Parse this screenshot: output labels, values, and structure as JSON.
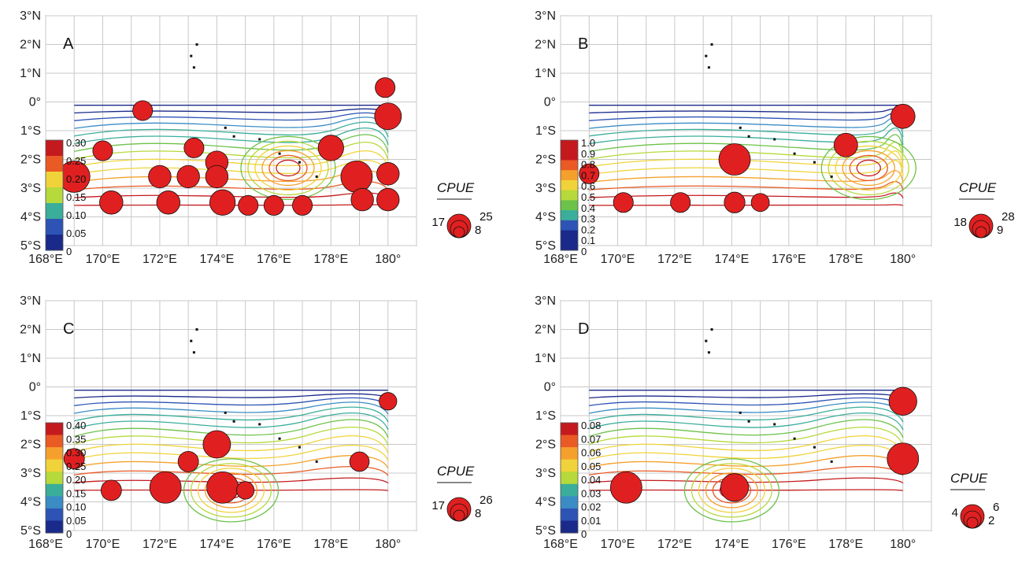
{
  "axes": {
    "lat_labels": [
      "3°N",
      "2°N",
      "1°N",
      "0°",
      "1°S",
      "2°S",
      "3°S",
      "4°S",
      "5°S"
    ],
    "lon_labels": [
      "168°E",
      "170°E",
      "172°E",
      "174°E",
      "176°E",
      "178°E",
      "180°"
    ],
    "lat_range": [
      -5,
      3
    ],
    "lon_range": [
      168,
      181
    ]
  },
  "colors": {
    "grid": "#c8c8c8",
    "circle": "#e02020",
    "land": "#111111",
    "colorbar": [
      "#ae0b1a",
      "#e63026",
      "#f57c2a",
      "#f3c437",
      "#c7df3a",
      "#75c442",
      "#33a896",
      "#3a7fc4",
      "#2b3d9f",
      "#1a1a80"
    ]
  },
  "chart_data": [
    {
      "type": "map",
      "panel": "A",
      "legend_title": "CPUE",
      "legend_values": [
        "17",
        "25",
        "8"
      ],
      "colorbar_ticks": [
        "0.30",
        "0.25",
        "0.20",
        "0.15",
        "0.10",
        "0.05",
        "0"
      ],
      "contour_center": [
        176.5,
        -2.3
      ],
      "points": [
        {
          "lon": 171.4,
          "lat": -0.3,
          "v": 8
        },
        {
          "lon": 169.0,
          "lat": -2.6,
          "v": 25
        },
        {
          "lon": 170.0,
          "lat": -1.7,
          "v": 8
        },
        {
          "lon": 172.0,
          "lat": -2.6,
          "v": 11
        },
        {
          "lon": 173.0,
          "lat": -2.6,
          "v": 11
        },
        {
          "lon": 173.2,
          "lat": -1.6,
          "v": 8
        },
        {
          "lon": 174.0,
          "lat": -2.1,
          "v": 11
        },
        {
          "lon": 174.0,
          "lat": -2.6,
          "v": 11
        },
        {
          "lon": 170.3,
          "lat": -3.5,
          "v": 12
        },
        {
          "lon": 172.3,
          "lat": -3.5,
          "v": 12
        },
        {
          "lon": 174.2,
          "lat": -3.5,
          "v": 15
        },
        {
          "lon": 175.1,
          "lat": -3.6,
          "v": 8
        },
        {
          "lon": 176.0,
          "lat": -3.6,
          "v": 8
        },
        {
          "lon": 177.0,
          "lat": -3.6,
          "v": 8
        },
        {
          "lon": 178.0,
          "lat": -1.6,
          "v": 15
        },
        {
          "lon": 178.9,
          "lat": -2.6,
          "v": 25
        },
        {
          "lon": 179.1,
          "lat": -3.4,
          "v": 11
        },
        {
          "lon": 180.0,
          "lat": -0.5,
          "v": 17
        },
        {
          "lon": 180.0,
          "lat": -2.5,
          "v": 11
        },
        {
          "lon": 180.0,
          "lat": -3.4,
          "v": 11
        },
        {
          "lon": 179.9,
          "lat": 0.5,
          "v": 8
        }
      ]
    },
    {
      "type": "map",
      "panel": "B",
      "legend_title": "CPUE",
      "legend_values": [
        "18",
        "28",
        "9"
      ],
      "colorbar_ticks": [
        "1.0",
        "0.9",
        "0.8",
        "0.7",
        "0.6",
        "0.5",
        "0.4",
        "0.3",
        "0.2",
        "0.1",
        "0"
      ],
      "contour_center": [
        178.8,
        -2.3
      ],
      "points": [
        {
          "lon": 169.0,
          "lat": -2.5,
          "v": 9
        },
        {
          "lon": 170.2,
          "lat": -3.5,
          "v": 9
        },
        {
          "lon": 172.2,
          "lat": -3.5,
          "v": 9
        },
        {
          "lon": 174.1,
          "lat": -2.0,
          "v": 28
        },
        {
          "lon": 174.1,
          "lat": -3.5,
          "v": 10
        },
        {
          "lon": 175.0,
          "lat": -3.5,
          "v": 7
        },
        {
          "lon": 178.0,
          "lat": -1.5,
          "v": 14
        },
        {
          "lon": 180.0,
          "lat": -0.5,
          "v": 15
        }
      ]
    },
    {
      "type": "map",
      "panel": "C",
      "legend_title": "CPUE",
      "legend_values": [
        "17",
        "26",
        "8"
      ],
      "colorbar_ticks": [
        "0.40",
        "0.35",
        "0.30",
        "0.25",
        "0.20",
        "0.15",
        "0.10",
        "0.05",
        "0"
      ],
      "contour_center": [
        174.5,
        -3.6
      ],
      "points": [
        {
          "lon": 169.0,
          "lat": -2.5,
          "v": 9
        },
        {
          "lon": 170.3,
          "lat": -3.6,
          "v": 9
        },
        {
          "lon": 173.0,
          "lat": -2.6,
          "v": 9
        },
        {
          "lon": 174.0,
          "lat": -2.0,
          "v": 19
        },
        {
          "lon": 172.2,
          "lat": -3.5,
          "v": 26
        },
        {
          "lon": 174.2,
          "lat": -3.5,
          "v": 26
        },
        {
          "lon": 175.0,
          "lat": -3.6,
          "v": 6
        },
        {
          "lon": 179.0,
          "lat": -2.6,
          "v": 8
        },
        {
          "lon": 180.0,
          "lat": -0.5,
          "v": 6
        }
      ]
    },
    {
      "type": "map",
      "panel": "D",
      "legend_title": "CPUE",
      "legend_values": [
        "4",
        "6",
        "2"
      ],
      "colorbar_ticks": [
        "0.08",
        "0.07",
        "0.06",
        "0.05",
        "0.04",
        "0.03",
        "0.02",
        "0.01",
        "0"
      ],
      "contour_center": [
        174.0,
        -3.6
      ],
      "points": [
        {
          "lon": 170.3,
          "lat": -3.5,
          "v": 4
        },
        {
          "lon": 174.1,
          "lat": -3.5,
          "v": 3
        },
        {
          "lon": 180.0,
          "lat": -0.5,
          "v": 3
        },
        {
          "lon": 180.0,
          "lat": -2.5,
          "v": 4
        }
      ]
    }
  ]
}
